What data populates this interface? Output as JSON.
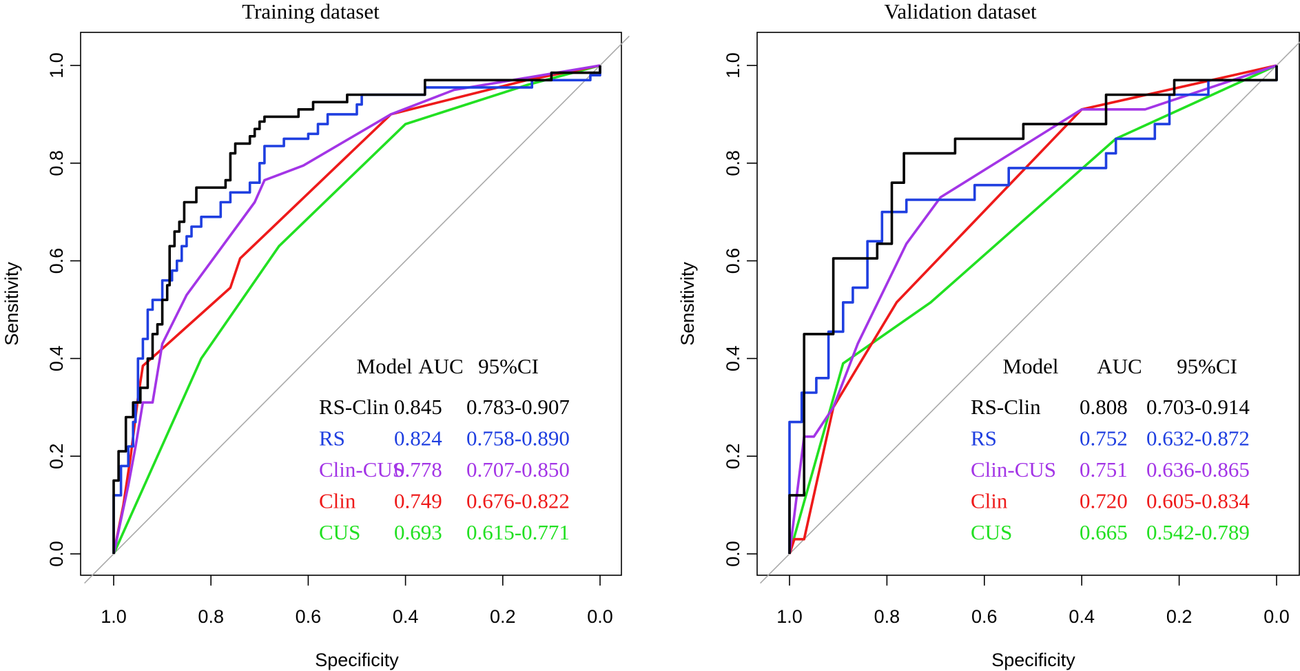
{
  "chart_data": [
    {
      "type": "line",
      "title": "Training dataset",
      "xlabel": "Specificity",
      "ylabel": "Sensitivity",
      "xlim": [
        1.0,
        0.0
      ],
      "ylim": [
        0.0,
        1.0
      ],
      "x_ticks": [
        "1.0",
        "0.8",
        "0.6",
        "0.4",
        "0.2",
        "0.0"
      ],
      "y_ticks": [
        "0.0",
        "0.2",
        "0.4",
        "0.6",
        "0.8",
        "1.0"
      ],
      "reference_line": "diagonal",
      "legend": {
        "placement": "bottom-right",
        "headers": [
          "Model",
          "AUC",
          "95%CI"
        ],
        "rows": [
          {
            "model": "RS-Clin",
            "auc": "0.845",
            "ci": "0.783-0.907",
            "color": "#000000"
          },
          {
            "model": "RS",
            "auc": "0.824",
            "ci": "0.758-0.890",
            "color": "#1f3fe0"
          },
          {
            "model": "Clin-CUS",
            "auc": "0.778",
            "ci": "0.707-0.850",
            "color": "#a335e6"
          },
          {
            "model": "Clin",
            "auc": "0.749",
            "ci": "0.676-0.822",
            "color": "#ee1a1a"
          },
          {
            "model": "CUS",
            "auc": "0.693",
            "ci": "0.615-0.771",
            "color": "#22e022"
          }
        ]
      },
      "series": [
        {
          "name": "CUS",
          "color": "#22e022",
          "points": [
            [
              1.0,
              0.0
            ],
            [
              0.82,
              0.4
            ],
            [
              0.66,
              0.63
            ],
            [
              0.4,
              0.88
            ],
            [
              0.15,
              0.96
            ],
            [
              0.0,
              1.0
            ]
          ]
        },
        {
          "name": "Clin",
          "color": "#ee1a1a",
          "points": [
            [
              1.0,
              0.0
            ],
            [
              0.98,
              0.1
            ],
            [
              0.965,
              0.2
            ],
            [
              0.95,
              0.32
            ],
            [
              0.94,
              0.385
            ],
            [
              0.9,
              0.42
            ],
            [
              0.76,
              0.545
            ],
            [
              0.74,
              0.605
            ],
            [
              0.43,
              0.9
            ],
            [
              0.15,
              0.97
            ],
            [
              0.0,
              1.0
            ]
          ]
        },
        {
          "name": "Clin-CUS",
          "color": "#a335e6",
          "points": [
            [
              1.0,
              0.0
            ],
            [
              0.97,
              0.14
            ],
            [
              0.955,
              0.22
            ],
            [
              0.94,
              0.31
            ],
            [
              0.92,
              0.31
            ],
            [
              0.9,
              0.43
            ],
            [
              0.85,
              0.53
            ],
            [
              0.71,
              0.72
            ],
            [
              0.69,
              0.765
            ],
            [
              0.61,
              0.795
            ],
            [
              0.43,
              0.9
            ],
            [
              0.3,
              0.95
            ],
            [
              0.0,
              1.0
            ]
          ]
        },
        {
          "name": "RS",
          "color": "#1f3fe0",
          "points": [
            [
              1.0,
              0.0
            ],
            [
              1.0,
              0.12
            ],
            [
              0.985,
              0.12
            ],
            [
              0.985,
              0.18
            ],
            [
              0.97,
              0.18
            ],
            [
              0.97,
              0.22
            ],
            [
              0.96,
              0.22
            ],
            [
              0.96,
              0.27
            ],
            [
              0.955,
              0.27
            ],
            [
              0.955,
              0.31
            ],
            [
              0.95,
              0.31
            ],
            [
              0.95,
              0.4
            ],
            [
              0.94,
              0.4
            ],
            [
              0.94,
              0.44
            ],
            [
              0.93,
              0.44
            ],
            [
              0.93,
              0.5
            ],
            [
              0.92,
              0.5
            ],
            [
              0.92,
              0.52
            ],
            [
              0.9,
              0.52
            ],
            [
              0.9,
              0.56
            ],
            [
              0.88,
              0.56
            ],
            [
              0.88,
              0.58
            ],
            [
              0.87,
              0.58
            ],
            [
              0.87,
              0.6
            ],
            [
              0.86,
              0.6
            ],
            [
              0.86,
              0.63
            ],
            [
              0.85,
              0.63
            ],
            [
              0.85,
              0.65
            ],
            [
              0.84,
              0.65
            ],
            [
              0.84,
              0.67
            ],
            [
              0.82,
              0.67
            ],
            [
              0.82,
              0.69
            ],
            [
              0.78,
              0.69
            ],
            [
              0.78,
              0.72
            ],
            [
              0.76,
              0.72
            ],
            [
              0.76,
              0.74
            ],
            [
              0.72,
              0.74
            ],
            [
              0.72,
              0.76
            ],
            [
              0.7,
              0.76
            ],
            [
              0.7,
              0.8
            ],
            [
              0.69,
              0.8
            ],
            [
              0.69,
              0.835
            ],
            [
              0.65,
              0.835
            ],
            [
              0.65,
              0.85
            ],
            [
              0.6,
              0.85
            ],
            [
              0.6,
              0.86
            ],
            [
              0.58,
              0.86
            ],
            [
              0.58,
              0.88
            ],
            [
              0.56,
              0.88
            ],
            [
              0.56,
              0.9
            ],
            [
              0.5,
              0.9
            ],
            [
              0.5,
              0.92
            ],
            [
              0.49,
              0.92
            ],
            [
              0.49,
              0.94
            ],
            [
              0.44,
              0.94
            ],
            [
              0.44,
              0.94
            ],
            [
              0.36,
              0.94
            ],
            [
              0.36,
              0.955
            ],
            [
              0.14,
              0.955
            ],
            [
              0.14,
              0.97
            ],
            [
              0.02,
              0.97
            ],
            [
              0.02,
              0.98
            ],
            [
              0.0,
              0.98
            ],
            [
              0.0,
              1.0
            ]
          ]
        },
        {
          "name": "RS-Clin",
          "color": "#000000",
          "points": [
            [
              1.0,
              0.0
            ],
            [
              1.0,
              0.15
            ],
            [
              0.99,
              0.15
            ],
            [
              0.99,
              0.21
            ],
            [
              0.975,
              0.21
            ],
            [
              0.975,
              0.28
            ],
            [
              0.96,
              0.28
            ],
            [
              0.96,
              0.31
            ],
            [
              0.945,
              0.31
            ],
            [
              0.945,
              0.34
            ],
            [
              0.93,
              0.34
            ],
            [
              0.93,
              0.4
            ],
            [
              0.92,
              0.4
            ],
            [
              0.92,
              0.45
            ],
            [
              0.91,
              0.45
            ],
            [
              0.91,
              0.47
            ],
            [
              0.9,
              0.47
            ],
            [
              0.9,
              0.52
            ],
            [
              0.89,
              0.52
            ],
            [
              0.89,
              0.55
            ],
            [
              0.885,
              0.55
            ],
            [
              0.885,
              0.63
            ],
            [
              0.875,
              0.63
            ],
            [
              0.875,
              0.66
            ],
            [
              0.865,
              0.66
            ],
            [
              0.865,
              0.68
            ],
            [
              0.855,
              0.68
            ],
            [
              0.855,
              0.72
            ],
            [
              0.83,
              0.72
            ],
            [
              0.83,
              0.75
            ],
            [
              0.77,
              0.75
            ],
            [
              0.77,
              0.765
            ],
            [
              0.76,
              0.765
            ],
            [
              0.76,
              0.82
            ],
            [
              0.75,
              0.82
            ],
            [
              0.75,
              0.84
            ],
            [
              0.72,
              0.84
            ],
            [
              0.72,
              0.855
            ],
            [
              0.71,
              0.855
            ],
            [
              0.71,
              0.87
            ],
            [
              0.7,
              0.87
            ],
            [
              0.7,
              0.885
            ],
            [
              0.69,
              0.885
            ],
            [
              0.69,
              0.895
            ],
            [
              0.62,
              0.895
            ],
            [
              0.62,
              0.91
            ],
            [
              0.59,
              0.91
            ],
            [
              0.59,
              0.925
            ],
            [
              0.52,
              0.925
            ],
            [
              0.52,
              0.94
            ],
            [
              0.36,
              0.94
            ],
            [
              0.36,
              0.97
            ],
            [
              0.1,
              0.97
            ],
            [
              0.1,
              0.985
            ],
            [
              0.0,
              0.985
            ],
            [
              0.0,
              1.0
            ]
          ]
        }
      ]
    },
    {
      "type": "line",
      "title": "Validation dataset",
      "xlabel": "Specificity",
      "ylabel": "Sensitivity",
      "xlim": [
        1.0,
        0.0
      ],
      "ylim": [
        0.0,
        1.0
      ],
      "x_ticks": [
        "1.0",
        "0.8",
        "0.6",
        "0.4",
        "0.2",
        "0.0"
      ],
      "y_ticks": [
        "0.0",
        "0.2",
        "0.4",
        "0.6",
        "0.8",
        "1.0"
      ],
      "reference_line": "diagonal",
      "legend": {
        "placement": "bottom-right",
        "headers": [
          "Model",
          "AUC",
          "95%CI"
        ],
        "rows": [
          {
            "model": "RS-Clin",
            "auc": "0.808",
            "ci": "0.703-0.914",
            "color": "#000000"
          },
          {
            "model": "RS",
            "auc": "0.752",
            "ci": "0.632-0.872",
            "color": "#1f3fe0"
          },
          {
            "model": "Clin-CUS",
            "auc": "0.751",
            "ci": "0.636-0.865",
            "color": "#a335e6"
          },
          {
            "model": "Clin",
            "auc": "0.720",
            "ci": "0.605-0.834",
            "color": "#ee1a1a"
          },
          {
            "model": "CUS",
            "auc": "0.665",
            "ci": "0.542-0.789",
            "color": "#22e022"
          }
        ]
      },
      "series": [
        {
          "name": "CUS",
          "color": "#22e022",
          "points": [
            [
              1.0,
              0.0
            ],
            [
              0.89,
              0.39
            ],
            [
              0.71,
              0.515
            ],
            [
              0.33,
              0.85
            ],
            [
              0.0,
              1.0
            ]
          ]
        },
        {
          "name": "Clin",
          "color": "#ee1a1a",
          "points": [
            [
              1.0,
              0.0
            ],
            [
              0.99,
              0.03
            ],
            [
              0.97,
              0.03
            ],
            [
              0.91,
              0.3
            ],
            [
              0.78,
              0.515
            ],
            [
              0.4,
              0.91
            ],
            [
              0.0,
              1.0
            ]
          ]
        },
        {
          "name": "Clin-CUS",
          "color": "#a335e6",
          "points": [
            [
              1.0,
              0.0
            ],
            [
              0.985,
              0.12
            ],
            [
              0.97,
              0.24
            ],
            [
              0.95,
              0.24
            ],
            [
              0.91,
              0.3
            ],
            [
              0.86,
              0.43
            ],
            [
              0.76,
              0.635
            ],
            [
              0.69,
              0.73
            ],
            [
              0.4,
              0.91
            ],
            [
              0.27,
              0.91
            ],
            [
              0.0,
              1.0
            ]
          ]
        },
        {
          "name": "RS",
          "color": "#1f3fe0",
          "points": [
            [
              1.0,
              0.0
            ],
            [
              1.0,
              0.27
            ],
            [
              0.975,
              0.27
            ],
            [
              0.975,
              0.33
            ],
            [
              0.945,
              0.33
            ],
            [
              0.945,
              0.36
            ],
            [
              0.92,
              0.36
            ],
            [
              0.92,
              0.455
            ],
            [
              0.89,
              0.455
            ],
            [
              0.89,
              0.515
            ],
            [
              0.87,
              0.515
            ],
            [
              0.87,
              0.545
            ],
            [
              0.84,
              0.545
            ],
            [
              0.84,
              0.64
            ],
            [
              0.81,
              0.64
            ],
            [
              0.81,
              0.7
            ],
            [
              0.78,
              0.7
            ],
            [
              0.78,
              0.7
            ],
            [
              0.76,
              0.7
            ],
            [
              0.76,
              0.725
            ],
            [
              0.62,
              0.725
            ],
            [
              0.62,
              0.755
            ],
            [
              0.55,
              0.755
            ],
            [
              0.55,
              0.79
            ],
            [
              0.35,
              0.79
            ],
            [
              0.35,
              0.82
            ],
            [
              0.33,
              0.82
            ],
            [
              0.33,
              0.85
            ],
            [
              0.25,
              0.85
            ],
            [
              0.25,
              0.88
            ],
            [
              0.22,
              0.88
            ],
            [
              0.22,
              0.94
            ],
            [
              0.14,
              0.94
            ],
            [
              0.14,
              0.97
            ],
            [
              0.0,
              0.97
            ],
            [
              0.0,
              1.0
            ]
          ]
        },
        {
          "name": "RS-Clin",
          "color": "#000000",
          "points": [
            [
              1.0,
              0.0
            ],
            [
              1.0,
              0.12
            ],
            [
              0.97,
              0.12
            ],
            [
              0.97,
              0.45
            ],
            [
              0.91,
              0.45
            ],
            [
              0.91,
              0.605
            ],
            [
              0.82,
              0.605
            ],
            [
              0.82,
              0.635
            ],
            [
              0.79,
              0.635
            ],
            [
              0.79,
              0.76
            ],
            [
              0.765,
              0.76
            ],
            [
              0.765,
              0.82
            ],
            [
              0.66,
              0.82
            ],
            [
              0.66,
              0.85
            ],
            [
              0.52,
              0.85
            ],
            [
              0.52,
              0.88
            ],
            [
              0.35,
              0.88
            ],
            [
              0.35,
              0.94
            ],
            [
              0.21,
              0.94
            ],
            [
              0.21,
              0.97
            ],
            [
              0.0,
              0.97
            ],
            [
              0.0,
              1.0
            ]
          ]
        }
      ]
    }
  ]
}
